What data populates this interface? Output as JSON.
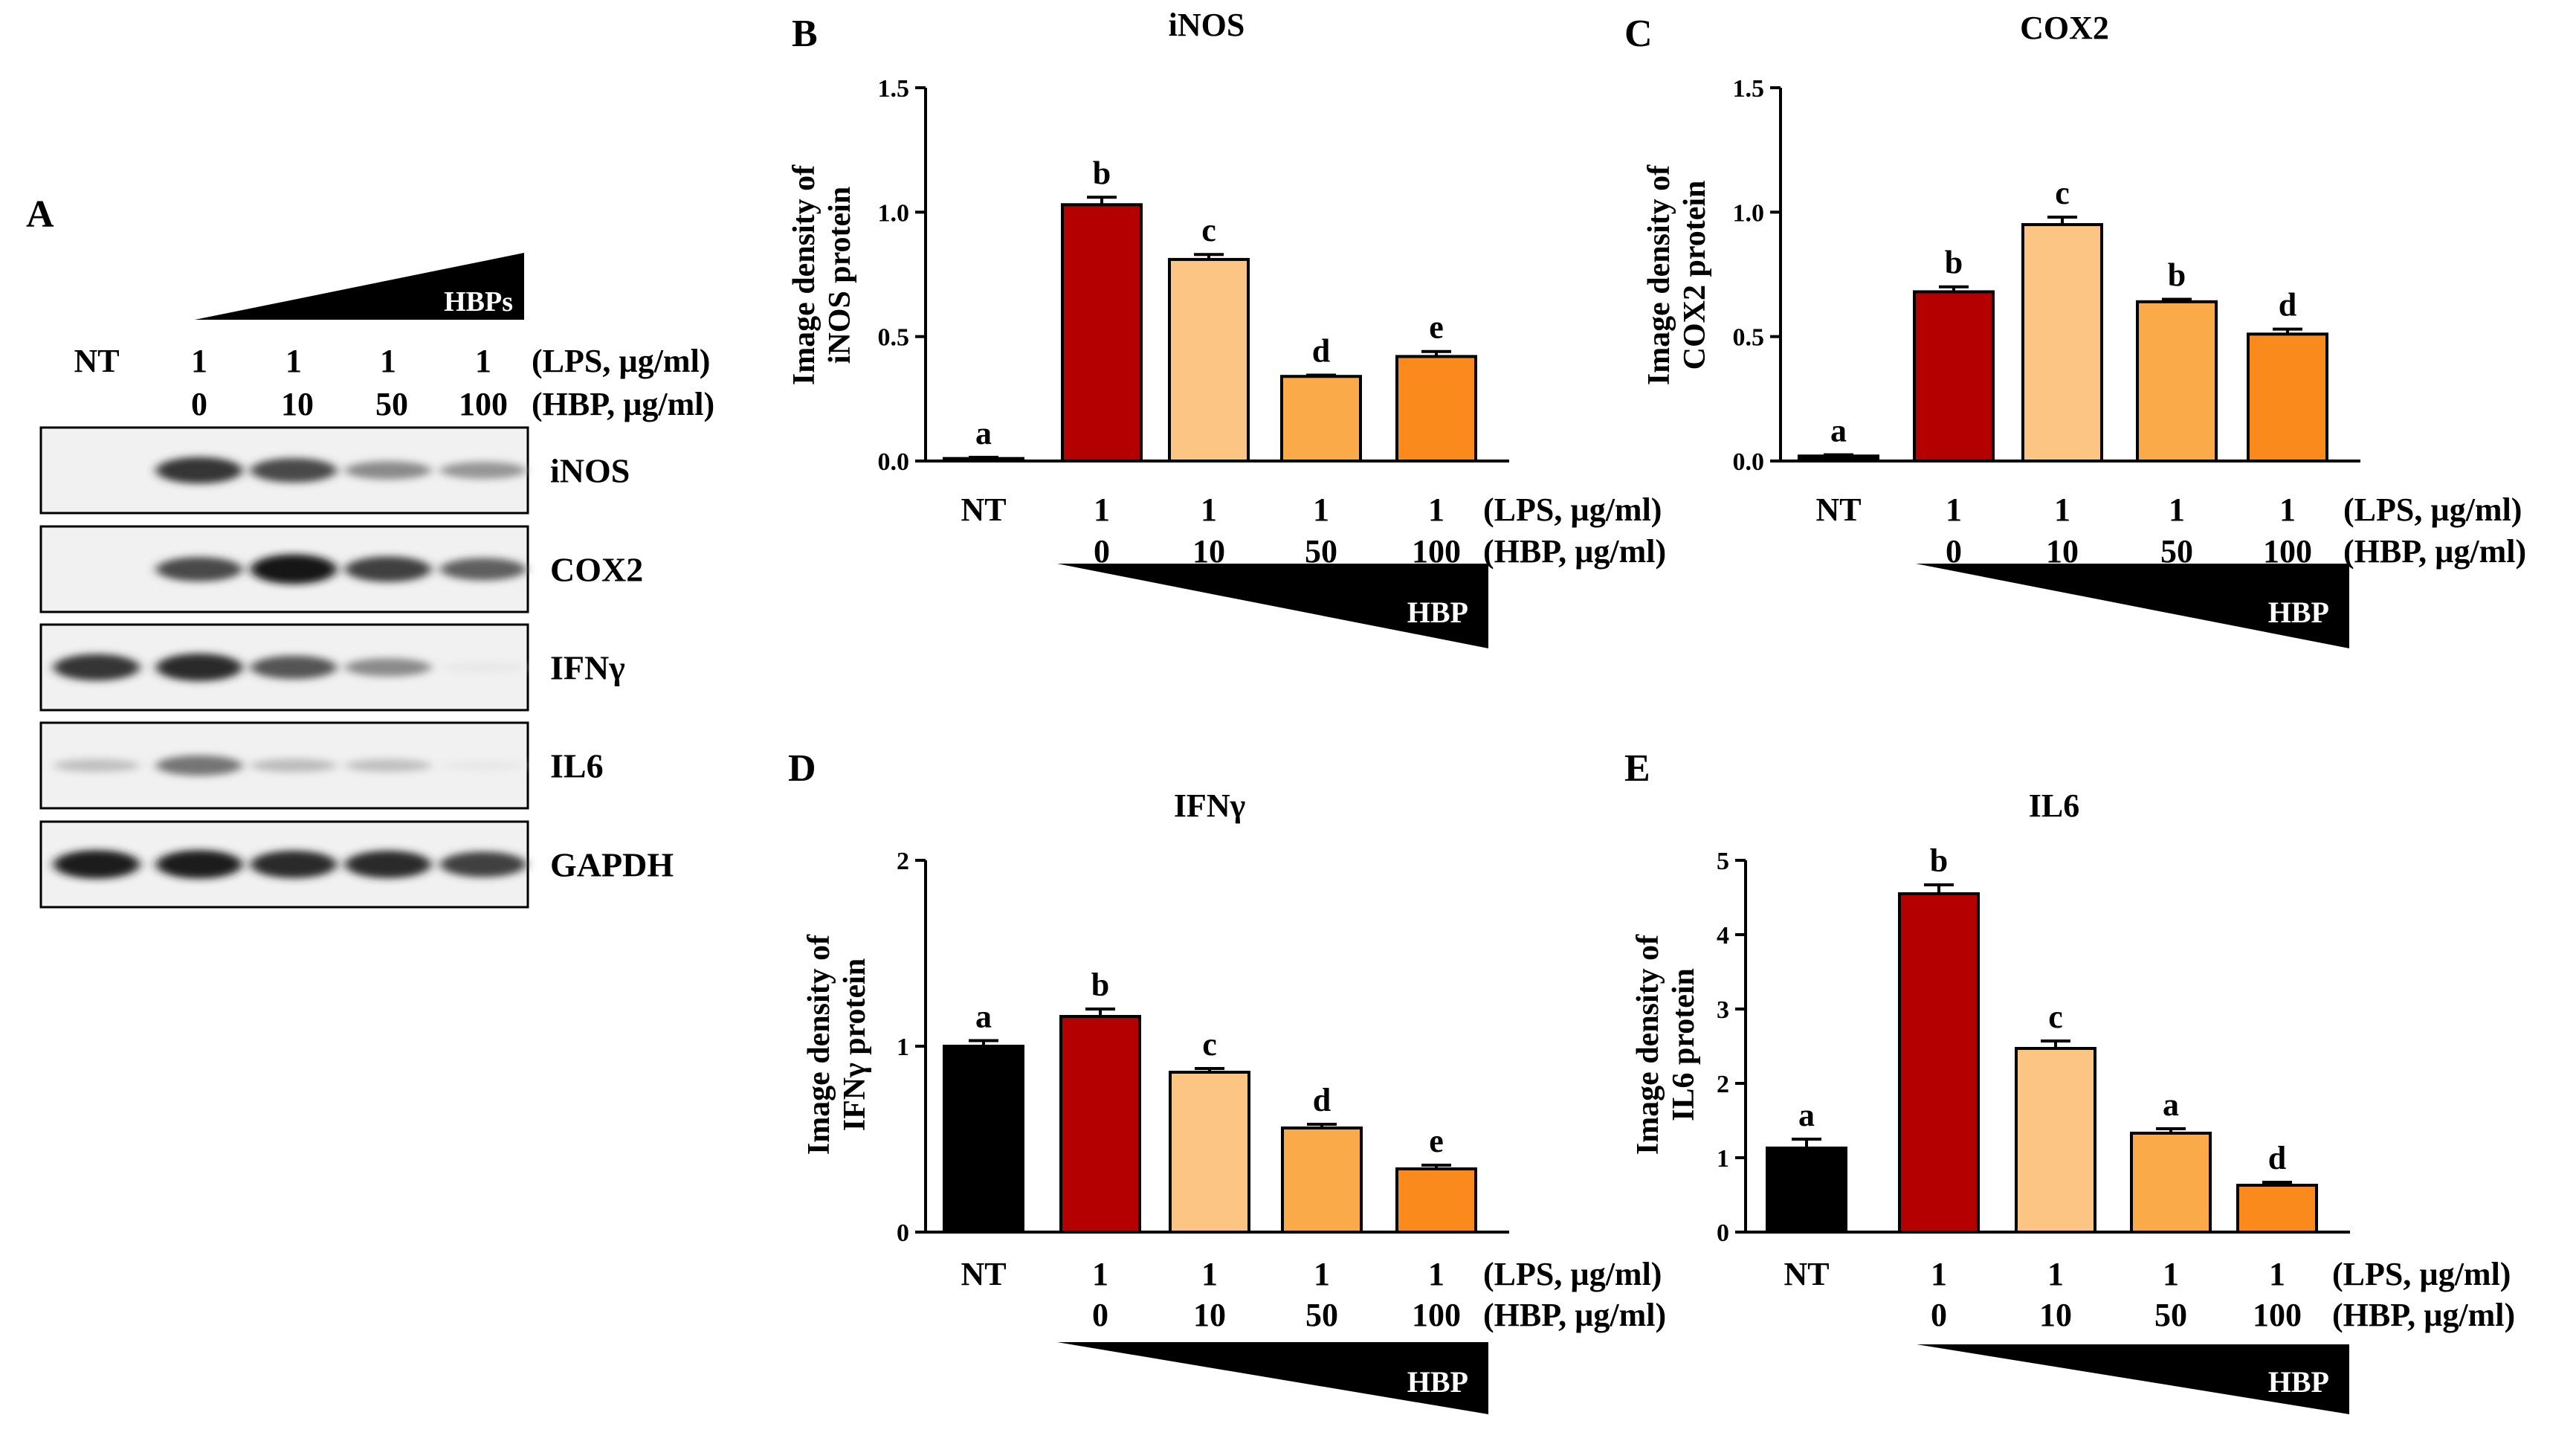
{
  "panel_a": {
    "letter": "A",
    "gradient_label": "HBPs",
    "lane_labels": [
      {
        "lps": "NT",
        "hbp": ""
      },
      {
        "lps": "1",
        "hbp": "0"
      },
      {
        "lps": "1",
        "hbp": "10"
      },
      {
        "lps": "1",
        "hbp": "50"
      },
      {
        "lps": "1",
        "hbp": "100"
      }
    ],
    "lps_unit": "(LPS, µg/ml)",
    "hbp_unit": "(HBP, µg/ml)",
    "blots": [
      {
        "name": "iNOS",
        "intensities": [
          0.0,
          0.85,
          0.75,
          0.45,
          0.4
        ]
      },
      {
        "name": "COX2",
        "intensities": [
          0.0,
          0.75,
          1.0,
          0.8,
          0.65
        ]
      },
      {
        "name": "IFNγ",
        "intensities": [
          0.85,
          0.9,
          0.7,
          0.45,
          0.02
        ]
      },
      {
        "name": "IL6",
        "intensities": [
          0.2,
          0.55,
          0.22,
          0.2,
          0.02
        ]
      },
      {
        "name": "GAPDH",
        "intensities": [
          0.95,
          0.95,
          0.9,
          0.9,
          0.8
        ]
      }
    ]
  },
  "chart_data": [
    {
      "panel": "B",
      "type": "bar",
      "title": "iNOS",
      "ylabel": [
        "Image density of",
        "iNOS protein"
      ],
      "ylim": [
        0,
        1.5
      ],
      "yticks": [
        "0.0",
        "0.5",
        "1.0",
        "1.5"
      ],
      "tick_values": [
        0,
        0.5,
        1.0,
        1.5
      ],
      "categories_lps": [
        "NT",
        "1",
        "1",
        "1",
        "1"
      ],
      "categories_hbp": [
        "",
        "0",
        "10",
        "50",
        "100"
      ],
      "lps_unit": "(LPS, µg/ml)",
      "hbp_unit": "(HBP, µg/ml)",
      "gradient_label": "HBP",
      "values": [
        0.01,
        1.03,
        0.81,
        0.34,
        0.42
      ],
      "errors": [
        0.005,
        0.03,
        0.02,
        0.005,
        0.02
      ],
      "letters": [
        "a",
        "b",
        "c",
        "d",
        "e"
      ],
      "colors": [
        "#000000",
        "#b50000",
        "#fcc583",
        "#fbaa4a",
        "#fb8a1c"
      ]
    },
    {
      "panel": "C",
      "type": "bar",
      "title": "COX2",
      "ylabel": [
        "Image density of",
        "COX2 protein"
      ],
      "ylim": [
        0,
        1.5
      ],
      "yticks": [
        "0.0",
        "0.5",
        "1.0",
        "1.5"
      ],
      "tick_values": [
        0,
        0.5,
        1.0,
        1.5
      ],
      "categories_lps": [
        "NT",
        "1",
        "1",
        "1",
        "1"
      ],
      "categories_hbp": [
        "",
        "0",
        "10",
        "50",
        "100"
      ],
      "lps_unit": "(LPS, µg/ml)",
      "hbp_unit": "(HBP, µg/ml)",
      "gradient_label": "HBP",
      "values": [
        0.02,
        0.68,
        0.95,
        0.64,
        0.51
      ],
      "errors": [
        0.005,
        0.02,
        0.03,
        0.01,
        0.02
      ],
      "letters": [
        "a",
        "b",
        "c",
        "b",
        "d"
      ],
      "colors": [
        "#000000",
        "#b50000",
        "#fcc583",
        "#fbaa4a",
        "#fb8a1c"
      ]
    },
    {
      "panel": "D",
      "type": "bar",
      "title": "IFNγ",
      "ylabel": [
        "Image density of",
        "IFNγ protein"
      ],
      "ylim": [
        0,
        2
      ],
      "yticks": [
        "0",
        "1",
        "2"
      ],
      "tick_values": [
        0,
        1,
        2
      ],
      "categories_lps": [
        "NT",
        "1",
        "1",
        "1",
        "1"
      ],
      "categories_hbp": [
        "",
        "0",
        "10",
        "50",
        "100"
      ],
      "lps_unit": "(LPS, µg/ml)",
      "hbp_unit": "(HBP, µg/ml)",
      "gradient_label": "HBP",
      "values": [
        1.0,
        1.16,
        0.86,
        0.56,
        0.34
      ],
      "errors": [
        0.03,
        0.04,
        0.02,
        0.02,
        0.02
      ],
      "letters": [
        "a",
        "b",
        "c",
        "d",
        "e"
      ],
      "colors": [
        "#000000",
        "#b50000",
        "#fcc583",
        "#fbaa4a",
        "#fb8a1c"
      ]
    },
    {
      "panel": "E",
      "type": "bar",
      "title": "IL6",
      "ylabel": [
        "Image density of",
        "IL6 protein"
      ],
      "ylim": [
        0,
        5
      ],
      "yticks": [
        "0",
        "1",
        "2",
        "3",
        "4",
        "5"
      ],
      "tick_values": [
        0,
        1,
        2,
        3,
        4,
        5
      ],
      "categories_lps": [
        "NT",
        "1",
        "1",
        "1",
        "1"
      ],
      "categories_hbp": [
        "",
        "0",
        "10",
        "50",
        "100"
      ],
      "lps_unit": "(LPS, µg/ml)",
      "hbp_unit": "(HBP, µg/ml)",
      "gradient_label": "HBP",
      "values": [
        1.13,
        4.55,
        2.47,
        1.33,
        0.63
      ],
      "errors": [
        0.12,
        0.12,
        0.1,
        0.06,
        0.04
      ],
      "letters": [
        "a",
        "b",
        "c",
        "a",
        "d"
      ],
      "colors": [
        "#000000",
        "#b50000",
        "#fcc583",
        "#fbaa4a",
        "#fb8a1c"
      ]
    }
  ]
}
